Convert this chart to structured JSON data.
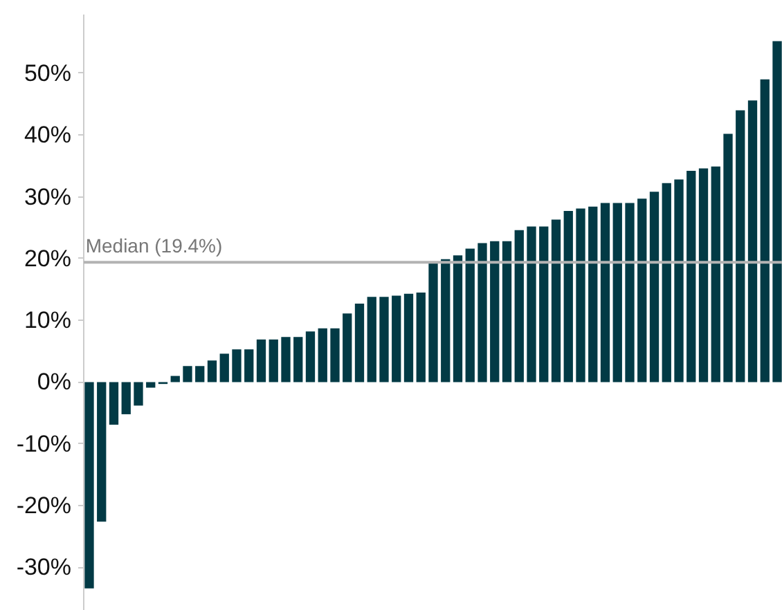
{
  "chart_data": {
    "type": "bar",
    "categories": [
      null,
      null,
      null,
      null,
      null,
      null,
      null,
      null,
      null,
      null,
      null,
      null,
      null,
      null,
      null,
      null,
      null,
      null,
      null,
      null,
      null,
      null,
      null,
      null,
      null,
      null,
      null,
      null,
      null,
      null,
      null,
      null,
      null,
      null,
      null,
      null,
      null,
      null,
      null,
      null,
      null,
      null,
      null,
      null,
      null,
      null,
      null,
      null,
      null,
      null,
      null,
      null,
      null,
      null,
      null,
      null,
      null
    ],
    "values": [
      -33.4,
      -22.6,
      -6.9,
      -5.2,
      -3.8,
      -0.9,
      -0.3,
      1.0,
      2.6,
      2.6,
      3.5,
      4.6,
      5.3,
      5.3,
      6.9,
      6.9,
      7.3,
      7.3,
      8.2,
      8.7,
      8.7,
      11.1,
      12.7,
      13.8,
      13.8,
      14.0,
      14.3,
      14.5,
      19.4,
      19.9,
      20.5,
      21.6,
      22.5,
      22.8,
      22.8,
      24.6,
      25.2,
      25.2,
      26.3,
      27.7,
      28.1,
      28.4,
      29.0,
      29.0,
      29.0,
      29.7,
      30.8,
      32.2,
      32.8,
      34.2,
      34.6,
      34.9,
      40.2,
      44.0,
      45.6,
      49.0,
      55.2
    ],
    "color": "#023a45",
    "ylim": [
      -37,
      59.5
    ],
    "yticks": [
      {
        "value": -30,
        "label": "-30%"
      },
      {
        "value": -20,
        "label": "-20%"
      },
      {
        "value": -10,
        "label": "-10%"
      },
      {
        "value": 0,
        "label": "0%"
      },
      {
        "value": 10,
        "label": "10%"
      },
      {
        "value": 20,
        "label": "20%"
      },
      {
        "value": 30,
        "label": "30%"
      },
      {
        "value": 40,
        "label": "40%"
      },
      {
        "value": 50,
        "label": "50%"
      }
    ],
    "ref_lines": [
      {
        "axis": "y",
        "value": 19.4,
        "label": "Median (19.4%)",
        "color": "#b3b3b3"
      }
    ],
    "tick_labels": "y",
    "grid": false
  }
}
